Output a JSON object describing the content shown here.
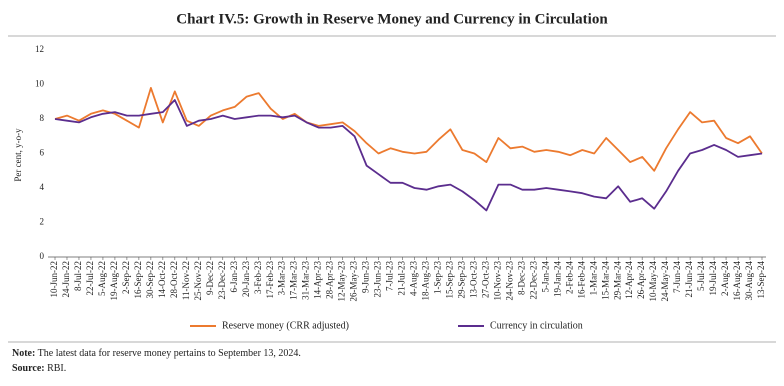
{
  "chart_data": {
    "type": "line",
    "title": "Chart IV.5: Growth in Reserve Money and Currency in Circulation",
    "y_label": "Per cent, y-o-y",
    "categories": [
      "10-Jun-22",
      "24-Jun-22",
      "8-Jul-22",
      "22-Jul-22",
      "5-Aug-22",
      "19-Aug-22",
      "2-Sep-22",
      "16-Sep-22",
      "30-Sep-22",
      "14-Oct-22",
      "28-Oct-22",
      "11-Nov-22",
      "25-Nov-22",
      "9-Dec-22",
      "23-Dec-22",
      "6-Jan-23",
      "20-Jan-23",
      "3-Feb-23",
      "17-Feb-23",
      "3-Mar-23",
      "17-Mar-23",
      "31-Mar-23",
      "14-Apr-23",
      "28-Apr-23",
      "12-May-23",
      "26-May-23",
      "9-Jun-23",
      "23-Jun-23",
      "7-Jul-23",
      "21-Jul-23",
      "4-Aug-23",
      "18-Aug-23",
      "1-Sep-23",
      "15-Sep-23",
      "29-Sep-23",
      "13-Oct-23",
      "27-Oct-23",
      "10-Nov-23",
      "24-Nov-23",
      "8-Dec-23",
      "22-Dec-23",
      "5-Jan-24",
      "19-Jan-24",
      "2-Feb-24",
      "16-Feb-24",
      "1-Mar-24",
      "15-Mar-24",
      "29-Mar-24",
      "12-Apr-24",
      "26-Apr-24",
      "10-May-24",
      "24-May-24",
      "7-Jun-24",
      "21-Jun-24",
      "5-Jul-24",
      "19-Jul-24",
      "2-Aug-24",
      "16-Aug-24",
      "30-Aug-24",
      "13-Sep-24"
    ],
    "series": [
      {
        "name": "Reserve money (CRR adjusted)",
        "color": "#ec7a2f",
        "values": [
          8.0,
          8.2,
          7.9,
          8.3,
          8.5,
          8.3,
          7.9,
          7.5,
          9.8,
          7.8,
          9.6,
          7.9,
          7.6,
          8.2,
          8.5,
          8.7,
          9.3,
          9.5,
          8.6,
          8.0,
          8.3,
          7.8,
          7.6,
          7.7,
          7.8,
          7.3,
          6.6,
          6.0,
          6.3,
          6.1,
          6.0,
          6.1,
          6.8,
          7.4,
          6.2,
          6.0,
          5.5,
          6.9,
          6.3,
          6.4,
          6.1,
          6.2,
          6.1,
          5.9,
          6.2,
          6.0,
          6.9,
          6.2,
          5.5,
          5.8,
          5.0,
          6.3,
          7.4,
          8.4,
          7.8,
          7.9,
          6.9,
          6.6,
          7.0,
          6.0
        ]
      },
      {
        "name": "Currency in circulation",
        "color": "#5b2d8e",
        "values": [
          8.0,
          7.9,
          7.8,
          8.1,
          8.3,
          8.4,
          8.2,
          8.2,
          8.3,
          8.4,
          9.1,
          7.6,
          7.9,
          8.0,
          8.2,
          8.0,
          8.1,
          8.2,
          8.2,
          8.1,
          8.2,
          7.8,
          7.5,
          7.5,
          7.6,
          7.0,
          5.3,
          4.8,
          4.3,
          4.3,
          4.0,
          3.9,
          4.1,
          4.2,
          3.8,
          3.3,
          2.7,
          4.2,
          4.2,
          3.9,
          3.9,
          4.0,
          3.9,
          3.8,
          3.7,
          3.5,
          3.4,
          4.1,
          3.2,
          3.4,
          2.8,
          3.8,
          5.0,
          6.0,
          6.2,
          6.5,
          6.2,
          5.8,
          5.9,
          6.0
        ]
      }
    ],
    "ylim": [
      0,
      12
    ],
    "yticks": [
      0,
      2,
      4,
      6,
      8,
      10,
      12
    ],
    "grid": false,
    "note_label": "Note:",
    "note": "The latest data for reserve money pertains to September 13, 2024.",
    "source_label": "Source:",
    "source": "RBI."
  }
}
